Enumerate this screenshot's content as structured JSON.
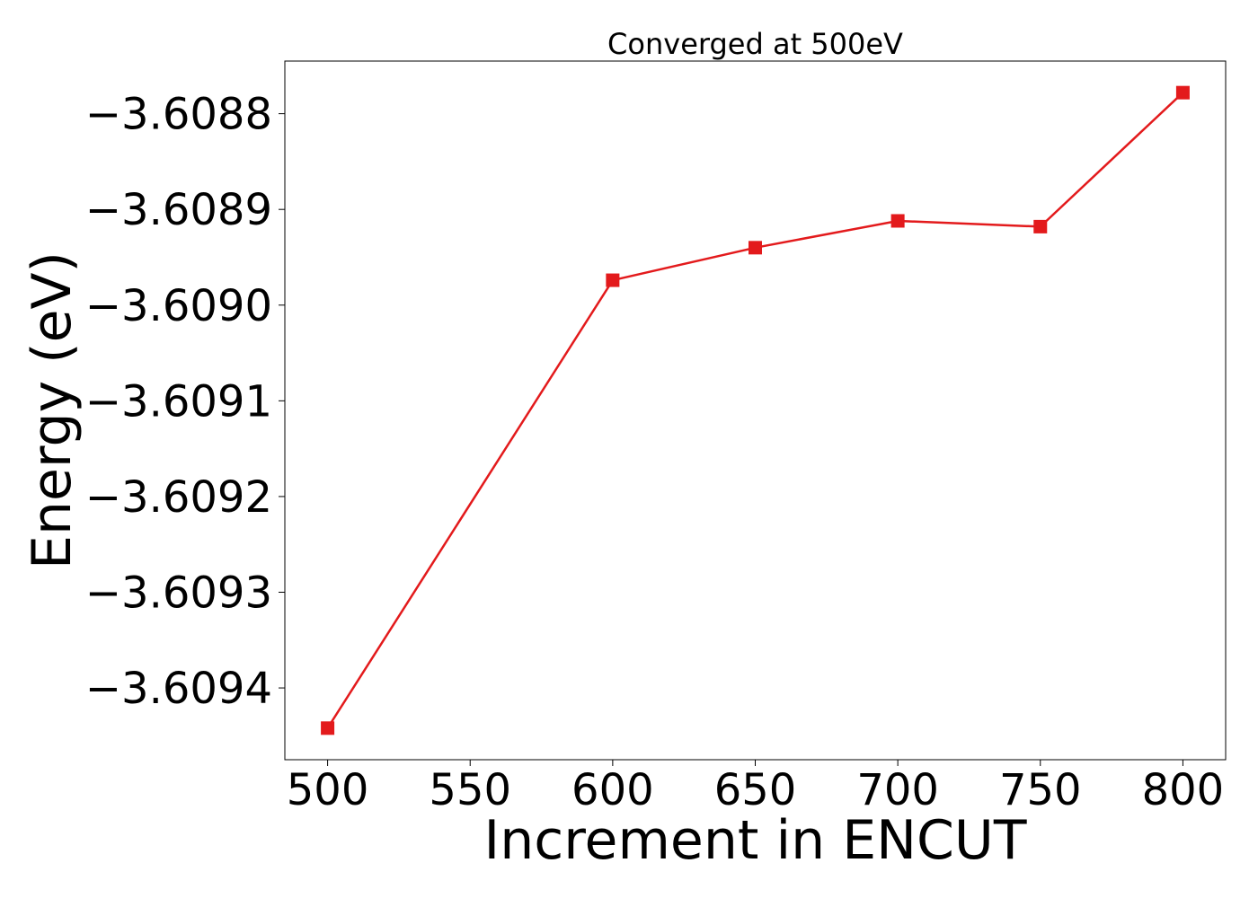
{
  "chart_data": {
    "type": "line",
    "title": "Converged at 500eV",
    "xlabel": "Increment in ENCUT",
    "ylabel": "Energy (eV)",
    "x": [
      500,
      600,
      650,
      700,
      750,
      800
    ],
    "series": [
      {
        "values": [
          -3.609442,
          -3.608974,
          -3.60894,
          -3.608912,
          -3.608918,
          -3.608778
        ],
        "color": "#e31a1c",
        "marker": "square"
      }
    ],
    "xticks": [
      500,
      550,
      600,
      650,
      700,
      750,
      800
    ],
    "xtick_labels": [
      "500",
      "550",
      "600",
      "650",
      700,
      "750",
      "800"
    ],
    "yticks": [
      -3.6094,
      -3.6093,
      -3.6092,
      -3.6091,
      -3.609,
      -3.6089,
      -3.6088
    ],
    "ytick_labels": [
      "−3.6094",
      "−3.6093",
      "−3.6092",
      "−3.6091",
      "−3.6090",
      "−3.6089",
      "−3.6088"
    ],
    "xlim": [
      485,
      815
    ],
    "ylim": [
      -3.609475,
      -3.608745
    ],
    "grid": false,
    "legend": "none"
  }
}
